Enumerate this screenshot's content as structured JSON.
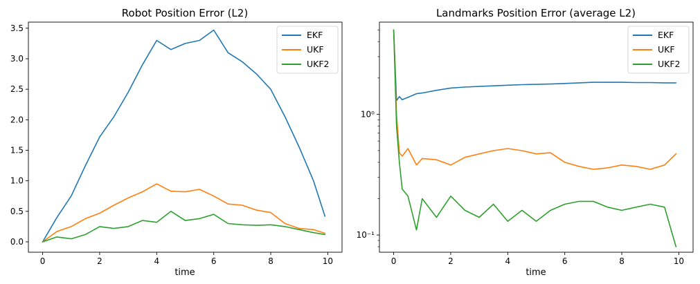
{
  "chart_data": [
    {
      "type": "line",
      "title": "Robot Position Error (L2)",
      "xlabel": "time",
      "ylabel": "",
      "xlim": [
        -0.5,
        10.5
      ],
      "ylim": [
        -0.17,
        3.6
      ],
      "yscale": "linear",
      "xticks": [
        0,
        2,
        4,
        6,
        8,
        10
      ],
      "xtick_labels": [
        "0",
        "2",
        "4",
        "6",
        "8",
        "10"
      ],
      "yticks": [
        0.0,
        0.5,
        1.0,
        1.5,
        2.0,
        2.5,
        3.0,
        3.5
      ],
      "ytick_labels": [
        "0.0",
        "0.5",
        "1.0",
        "1.5",
        "2.0",
        "2.5",
        "3.0",
        "3.5"
      ],
      "grid": false,
      "legend": "upper right",
      "x": [
        0.0,
        0.5,
        1.0,
        1.5,
        2.0,
        2.5,
        3.0,
        3.5,
        4.0,
        4.5,
        5.0,
        5.5,
        6.0,
        6.5,
        7.0,
        7.5,
        8.0,
        8.5,
        9.0,
        9.5,
        9.9
      ],
      "series": [
        {
          "name": "EKF",
          "color": "#1f77b4",
          "values": [
            0.0,
            0.4,
            0.75,
            1.25,
            1.72,
            2.05,
            2.45,
            2.9,
            3.3,
            3.15,
            3.25,
            3.3,
            3.47,
            3.1,
            2.95,
            2.75,
            2.5,
            2.05,
            1.55,
            1.0,
            0.42
          ]
        },
        {
          "name": "UKF",
          "color": "#ff7f0e",
          "values": [
            0.0,
            0.17,
            0.25,
            0.38,
            0.47,
            0.6,
            0.72,
            0.82,
            0.95,
            0.83,
            0.82,
            0.86,
            0.75,
            0.62,
            0.6,
            0.52,
            0.48,
            0.3,
            0.22,
            0.2,
            0.14
          ]
        },
        {
          "name": "UKF2",
          "color": "#2ca02c",
          "values": [
            0.0,
            0.08,
            0.05,
            0.12,
            0.25,
            0.22,
            0.25,
            0.35,
            0.32,
            0.5,
            0.35,
            0.38,
            0.45,
            0.3,
            0.28,
            0.27,
            0.28,
            0.25,
            0.2,
            0.15,
            0.12
          ]
        }
      ]
    },
    {
      "type": "line",
      "title": "Landmarks Position Error (average L2)",
      "xlabel": "time",
      "ylabel": "",
      "xlim": [
        -0.5,
        10.5
      ],
      "ylim": [
        0.072,
        5.8
      ],
      "yscale": "log",
      "xticks": [
        0,
        2,
        4,
        6,
        8,
        10
      ],
      "xtick_labels": [
        "0",
        "2",
        "4",
        "6",
        "8",
        "10"
      ],
      "yticks": [
        0.1,
        1.0
      ],
      "ytick_labels": [
        "10⁻¹",
        "10⁰"
      ],
      "grid": false,
      "legend": "upper right",
      "x": [
        0.0,
        0.1,
        0.2,
        0.3,
        0.5,
        0.8,
        1.0,
        1.5,
        2.0,
        2.5,
        3.0,
        3.5,
        4.0,
        4.5,
        5.0,
        5.5,
        6.0,
        6.5,
        7.0,
        7.5,
        8.0,
        8.5,
        9.0,
        9.5,
        9.9
      ],
      "series": [
        {
          "name": "EKF",
          "color": "#1f77b4",
          "values": [
            5.0,
            1.3,
            1.4,
            1.32,
            1.38,
            1.48,
            1.5,
            1.58,
            1.65,
            1.68,
            1.7,
            1.72,
            1.74,
            1.76,
            1.77,
            1.78,
            1.8,
            1.82,
            1.84,
            1.84,
            1.84,
            1.83,
            1.83,
            1.82,
            1.82
          ]
        },
        {
          "name": "UKF",
          "color": "#ff7f0e",
          "values": [
            5.0,
            1.0,
            0.48,
            0.45,
            0.52,
            0.38,
            0.43,
            0.42,
            0.38,
            0.44,
            0.47,
            0.5,
            0.52,
            0.5,
            0.47,
            0.48,
            0.4,
            0.37,
            0.35,
            0.36,
            0.38,
            0.37,
            0.35,
            0.38,
            0.47
          ]
        },
        {
          "name": "UKF2",
          "color": "#2ca02c",
          "values": [
            5.0,
            0.8,
            0.4,
            0.24,
            0.21,
            0.11,
            0.2,
            0.14,
            0.21,
            0.16,
            0.14,
            0.18,
            0.13,
            0.16,
            0.13,
            0.16,
            0.18,
            0.19,
            0.19,
            0.17,
            0.16,
            0.17,
            0.18,
            0.17,
            0.08
          ]
        }
      ]
    }
  ]
}
